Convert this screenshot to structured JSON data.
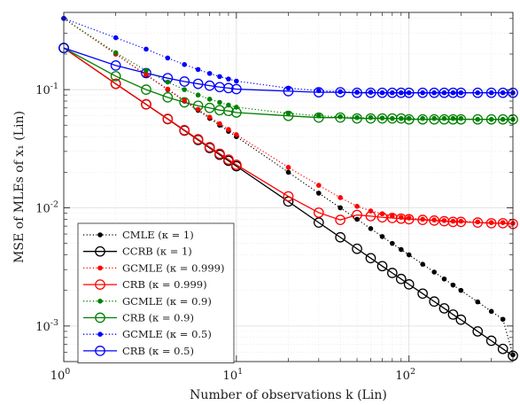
{
  "chart_data": {
    "type": "line",
    "xlabel": "Number of observations k (Lin)",
    "ylabel": "MSE of MLEs of x₁ (Lin)",
    "x_scale": "log",
    "y_scale": "log",
    "xlim": [
      1,
      400
    ],
    "ylim": [
      0.0005,
      0.45
    ],
    "grid": true,
    "legend_position": "bottom-left",
    "x_ticks": [
      {
        "value": 1,
        "base": "10",
        "exp": "0"
      },
      {
        "value": 10,
        "base": "10",
        "exp": "1"
      },
      {
        "value": 100,
        "base": "10",
        "exp": "2"
      }
    ],
    "y_ticks": [
      {
        "value": 0.001,
        "base": "10",
        "exp": "-3"
      },
      {
        "value": 0.01,
        "base": "10",
        "exp": "-2"
      },
      {
        "value": 0.1,
        "base": "10",
        "exp": "-1"
      }
    ],
    "x": [
      1,
      2,
      3,
      4,
      5,
      6,
      7,
      8,
      9,
      10,
      20,
      30,
      40,
      50,
      60,
      70,
      80,
      90,
      100,
      120,
      140,
      160,
      180,
      200,
      250,
      300,
      350,
      400
    ],
    "series": [
      {
        "name": "CMLE (κ = 1)",
        "color": "#000000",
        "style": "dotted",
        "marker": "dot",
        "values": [
          0.4,
          0.2,
          0.133,
          0.1,
          0.08,
          0.0667,
          0.0571,
          0.05,
          0.0444,
          0.04,
          0.02,
          0.0133,
          0.01,
          0.008,
          0.00667,
          0.00571,
          0.005,
          0.00444,
          0.004,
          0.00333,
          0.00286,
          0.0025,
          0.00222,
          0.002,
          0.0016,
          0.00133,
          0.00114,
          0.00057
        ]
      },
      {
        "name": "CCRB (κ = 1)",
        "color": "#000000",
        "style": "solid",
        "marker": "circle",
        "values": [
          0.225,
          0.112,
          0.075,
          0.0563,
          0.045,
          0.0375,
          0.0321,
          0.0281,
          0.025,
          0.0225,
          0.0113,
          0.0075,
          0.00563,
          0.0045,
          0.00375,
          0.00321,
          0.00281,
          0.0025,
          0.00225,
          0.00188,
          0.00161,
          0.00141,
          0.00125,
          0.00113,
          0.0009,
          0.00075,
          0.00064,
          0.00056
        ]
      },
      {
        "name": "GCMLE (κ = 0.999)",
        "color": "#ff0000",
        "style": "dotted",
        "marker": "dot",
        "values": [
          0.4,
          0.2,
          0.134,
          0.101,
          0.081,
          0.068,
          0.0585,
          0.0515,
          0.046,
          0.0416,
          0.022,
          0.0155,
          0.0122,
          0.0103,
          0.0094,
          0.0089,
          0.0085,
          0.0083,
          0.0082,
          0.008,
          0.0079,
          0.0078,
          0.0077,
          0.0077,
          0.0076,
          0.0075,
          0.0075,
          0.0074
        ]
      },
      {
        "name": "CRB (κ = 0.999)",
        "color": "#ff0000",
        "style": "solid",
        "marker": "circle",
        "values": [
          0.225,
          0.112,
          0.0752,
          0.0566,
          0.0454,
          0.038,
          0.0326,
          0.0287,
          0.0256,
          0.0231,
          0.0125,
          0.0091,
          0.0079,
          0.0087,
          0.0085,
          0.0083,
          0.0082,
          0.0081,
          0.008,
          0.0079,
          0.0078,
          0.0077,
          0.0076,
          0.0076,
          0.0075,
          0.0074,
          0.0074,
          0.0073
        ]
      },
      {
        "name": "GCMLE (κ = 0.9)",
        "color": "#008000",
        "style": "dotted",
        "marker": "dot",
        "values": [
          0.4,
          0.205,
          0.145,
          0.116,
          0.1,
          0.09,
          0.083,
          0.078,
          0.074,
          0.071,
          0.063,
          0.06,
          0.059,
          0.058,
          0.058,
          0.0575,
          0.057,
          0.057,
          0.057,
          0.057,
          0.057,
          0.057,
          0.057,
          0.057,
          0.056,
          0.056,
          0.056,
          0.056
        ]
      },
      {
        "name": "CRB (κ = 0.9)",
        "color": "#008000",
        "style": "solid",
        "marker": "circle",
        "values": [
          0.225,
          0.13,
          0.1,
          0.086,
          0.078,
          0.073,
          0.07,
          0.067,
          0.066,
          0.064,
          0.06,
          0.058,
          0.058,
          0.057,
          0.057,
          0.057,
          0.057,
          0.057,
          0.056,
          0.056,
          0.056,
          0.056,
          0.056,
          0.056,
          0.056,
          0.056,
          0.056,
          0.056
        ]
      },
      {
        "name": "GCMLE (κ = 0.5)",
        "color": "#0000ff",
        "style": "dotted",
        "marker": "dot",
        "values": [
          0.4,
          0.275,
          0.22,
          0.185,
          0.163,
          0.148,
          0.137,
          0.129,
          0.123,
          0.118,
          0.103,
          0.098,
          0.096,
          0.095,
          0.095,
          0.094,
          0.094,
          0.094,
          0.094,
          0.094,
          0.094,
          0.094,
          0.094,
          0.094,
          0.094,
          0.094,
          0.094,
          0.094
        ]
      },
      {
        "name": "CRB (κ = 0.5)",
        "color": "#0000ff",
        "style": "solid",
        "marker": "circle",
        "values": [
          0.225,
          0.16,
          0.138,
          0.125,
          0.117,
          0.112,
          0.108,
          0.105,
          0.103,
          0.101,
          0.097,
          0.095,
          0.095,
          0.094,
          0.094,
          0.094,
          0.094,
          0.094,
          0.094,
          0.094,
          0.094,
          0.094,
          0.094,
          0.094,
          0.094,
          0.094,
          0.094,
          0.094
        ]
      }
    ]
  }
}
